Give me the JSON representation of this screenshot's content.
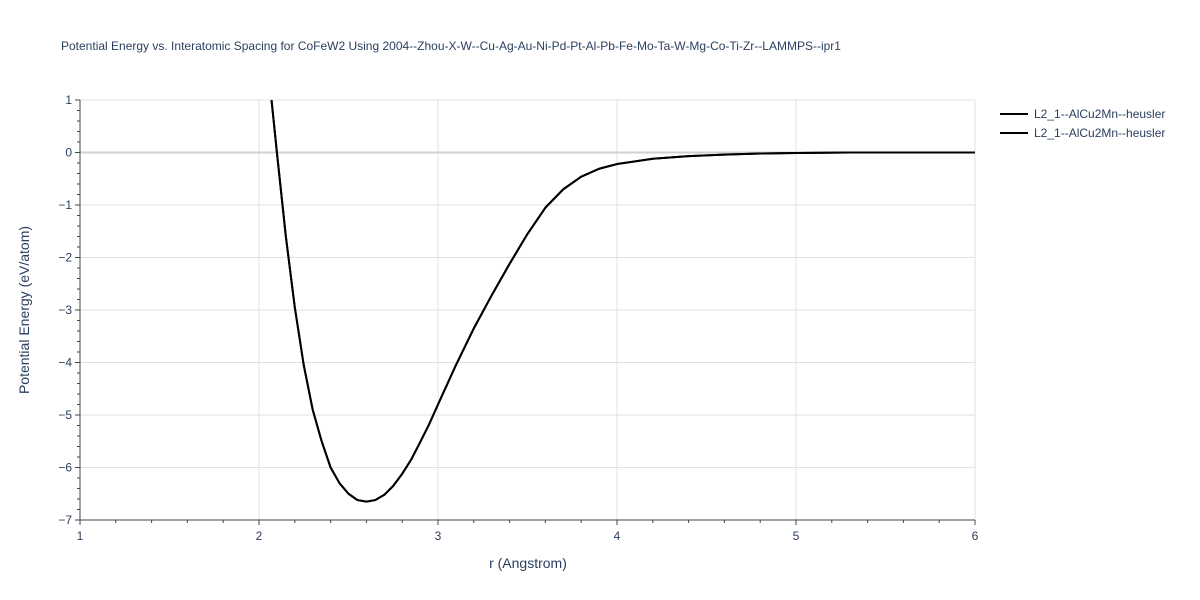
{
  "chart_data": {
    "type": "line",
    "title": "Potential Energy vs. Interatomic Spacing for CoFeW2 Using 2004--Zhou-X-W--Cu-Ag-Au-Ni-Pd-Pt-Al-Pb-Fe-Mo-Ta-W-Mg-Co-Ti-Zr--LAMMPS--ipr1",
    "xlabel": "r (Angstrom)",
    "ylabel": "Potential Energy (eV/atom)",
    "xlim": [
      1,
      6
    ],
    "ylim": [
      -7,
      1
    ],
    "x_ticks": [
      1,
      2,
      3,
      4,
      5,
      6
    ],
    "x_tick_labels": [
      "1",
      "2",
      "3",
      "4",
      "5",
      "6"
    ],
    "y_ticks": [
      1,
      0,
      -1,
      -2,
      -3,
      -4,
      -5,
      -6,
      -7
    ],
    "y_tick_labels": [
      "1",
      "0",
      "−1",
      "−2",
      "−3",
      "−4",
      "−5",
      "−6",
      "−7"
    ],
    "grid": true,
    "legend_position": "top-right",
    "series_color": "#000000",
    "series": [
      {
        "name": "L2_1--AlCu2Mn--heusler",
        "x": [
          2.07,
          2.1,
          2.15,
          2.2,
          2.25,
          2.3,
          2.35,
          2.4,
          2.45,
          2.5,
          2.55,
          2.6,
          2.65,
          2.7,
          2.75,
          2.8,
          2.85,
          2.9,
          2.95,
          3.0,
          3.1,
          3.2,
          3.3,
          3.4,
          3.5,
          3.6,
          3.7,
          3.8,
          3.9,
          4.0,
          4.2,
          4.4,
          4.6,
          4.8,
          5.0,
          5.3,
          5.6,
          6.0
        ],
        "y": [
          1.0,
          0.0,
          -1.6,
          -2.95,
          -4.05,
          -4.9,
          -5.5,
          -6.0,
          -6.3,
          -6.5,
          -6.62,
          -6.65,
          -6.62,
          -6.52,
          -6.35,
          -6.12,
          -5.85,
          -5.52,
          -5.18,
          -4.8,
          -4.05,
          -3.35,
          -2.72,
          -2.12,
          -1.55,
          -1.05,
          -0.7,
          -0.46,
          -0.31,
          -0.22,
          -0.12,
          -0.07,
          -0.04,
          -0.02,
          -0.01,
          0.0,
          0.0,
          0.0
        ]
      },
      {
        "name": "L2_1--AlCu2Mn--heusler",
        "x": [
          2.07,
          2.1,
          2.15,
          2.2,
          2.25,
          2.3,
          2.35,
          2.4,
          2.45,
          2.5,
          2.55,
          2.6,
          2.65,
          2.7,
          2.75,
          2.8,
          2.85,
          2.9,
          2.95,
          3.0,
          3.1,
          3.2,
          3.3,
          3.4,
          3.5,
          3.6,
          3.7,
          3.8,
          3.9,
          4.0,
          4.2,
          4.4,
          4.6,
          4.8,
          5.0,
          5.3,
          5.6,
          6.0
        ],
        "y": [
          1.0,
          0.0,
          -1.6,
          -2.95,
          -4.05,
          -4.9,
          -5.5,
          -6.0,
          -6.3,
          -6.5,
          -6.62,
          -6.65,
          -6.62,
          -6.52,
          -6.35,
          -6.12,
          -5.85,
          -5.52,
          -5.18,
          -4.8,
          -4.05,
          -3.35,
          -2.72,
          -2.12,
          -1.55,
          -1.05,
          -0.7,
          -0.46,
          -0.31,
          -0.22,
          -0.12,
          -0.07,
          -0.04,
          -0.02,
          -0.01,
          0.0,
          0.0,
          0.0
        ]
      }
    ]
  }
}
